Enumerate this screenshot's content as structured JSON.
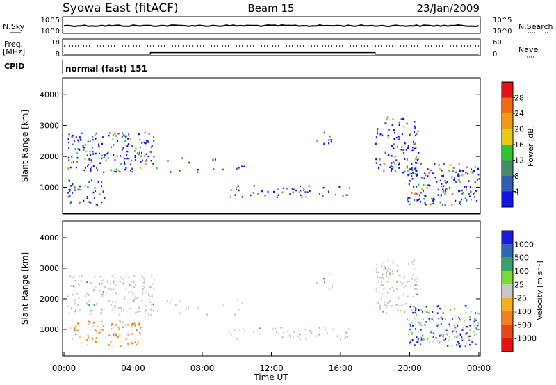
{
  "header": {
    "station": "Syowa East (fitACF)",
    "beam": "Beam 15",
    "date": "23/Jan/2009"
  },
  "status": {
    "nsky_label": "N.Sky",
    "nsearch_label": "N.Search",
    "freq_label_line1": "Freq.",
    "freq_label_line2": "[MHz]",
    "nave_label": "Nave",
    "cpid_label": "CPID",
    "nsky_ticks": [
      "10^5",
      "10^0"
    ],
    "nsearch_ticks": [
      "10^5",
      "10^0"
    ],
    "freq_ticks": [
      "18",
      "8"
    ],
    "nave_ticks": [
      "60",
      "0"
    ],
    "cpid_text": "normal (fast) 151",
    "freq_steps": [
      [
        0,
        9
      ],
      [
        5.0,
        10
      ],
      [
        18.0,
        9
      ],
      [
        24,
        9
      ]
    ]
  },
  "chart_data": [
    {
      "type": "heatmap",
      "name": "power",
      "ylabel": "Slant Range [km]",
      "xlim": [
        0,
        24
      ],
      "ylim": [
        180,
        4500
      ],
      "yticks": [
        1000,
        2000,
        3000,
        4000
      ],
      "ytick_labels": [
        "1000",
        "2000",
        "3000",
        "4000"
      ],
      "colorbar": {
        "label": "Power [dB]",
        "range": [
          0,
          32
        ],
        "tick_labels": [
          "4",
          "8",
          "12",
          "16",
          "20",
          "24",
          "28"
        ],
        "tick_values": [
          4,
          8,
          12,
          16,
          20,
          24,
          28
        ],
        "colors": [
          "#1414e0",
          "#2f5fae",
          "#4a8a6a",
          "#33c233",
          "#e8c818",
          "#f09a18",
          "#f06a14",
          "#e01414"
        ]
      },
      "scatter_regions": [
        {
          "t": [
            0.2,
            5.2
          ],
          "r": [
            1500,
            2800
          ],
          "density": 0.55
        },
        {
          "t": [
            0.2,
            2.5
          ],
          "r": [
            450,
            1300
          ],
          "density": 0.45
        },
        {
          "t": [
            5.2,
            10.5
          ],
          "r": [
            1500,
            2000
          ],
          "density": 0.12
        },
        {
          "t": [
            9.5,
            16.5
          ],
          "r": [
            700,
            1100
          ],
          "density": 0.35
        },
        {
          "t": [
            14.5,
            15.5
          ],
          "r": [
            2300,
            2900
          ],
          "density": 0.25
        },
        {
          "t": [
            18.0,
            20.5
          ],
          "r": [
            1500,
            3300
          ],
          "density": 0.5
        },
        {
          "t": [
            19.8,
            24
          ],
          "r": [
            450,
            1800
          ],
          "density": 0.6
        }
      ]
    },
    {
      "type": "heatmap",
      "name": "velocity",
      "ylabel": "Slant Range [km]",
      "xlabel": "Time UT",
      "xlim": [
        0,
        24
      ],
      "ylim": [
        180,
        4500
      ],
      "yticks": [
        1000,
        2000,
        3000,
        4000
      ],
      "ytick_labels": [
        "1000",
        "2000",
        "3000",
        "4000"
      ],
      "xtick_labels": [
        "00:00",
        "04:00",
        "08:00",
        "12:00",
        "16:00",
        "20:00",
        "00:00"
      ],
      "xtick_values": [
        0,
        4,
        8,
        12,
        16,
        20,
        24
      ],
      "colorbar": {
        "label": "Velocity [m s⁻¹]",
        "tick_labels": [
          "1000",
          "500",
          "100",
          "25",
          "-25",
          "-100",
          "-500",
          "-1000"
        ],
        "colors": [
          "#1c1ce0",
          "#2f68b0",
          "#3aa06a",
          "#7ad83a",
          "#c8c8c8",
          "#f0b020",
          "#f08020",
          "#e84818",
          "#e01414"
        ]
      },
      "scatter_regions": [
        {
          "t": [
            0.2,
            5.2
          ],
          "r": [
            1500,
            2800
          ],
          "density": 0.5
        },
        {
          "t": [
            0.2,
            4.5
          ],
          "r": [
            450,
            1300
          ],
          "density": 0.45
        },
        {
          "t": [
            5.2,
            10.5
          ],
          "r": [
            1500,
            2000
          ],
          "density": 0.12
        },
        {
          "t": [
            9.5,
            16.5
          ],
          "r": [
            700,
            1100
          ],
          "density": 0.35
        },
        {
          "t": [
            14.5,
            15.5
          ],
          "r": [
            2300,
            2900
          ],
          "density": 0.25
        },
        {
          "t": [
            18.0,
            20.5
          ],
          "r": [
            1500,
            3300
          ],
          "density": 0.5
        },
        {
          "t": [
            19.8,
            24
          ],
          "r": [
            450,
            1800
          ],
          "density": 0.6
        }
      ]
    }
  ]
}
